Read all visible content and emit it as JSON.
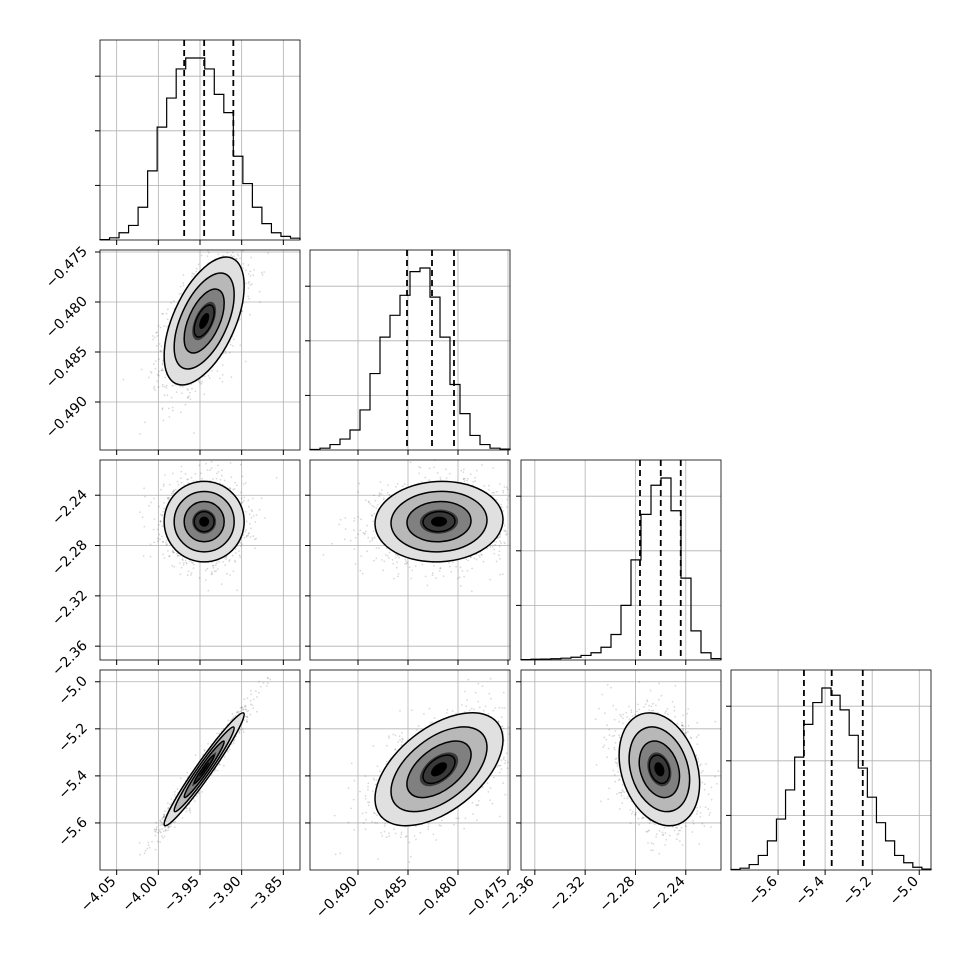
{
  "chart_data": {
    "type": "corner",
    "grid": true,
    "parameters": [
      {
        "key": "p0",
        "mean": -3.945,
        "std": 0.024,
        "range": [
          -4.07,
          -3.83
        ],
        "ticks": [
          -4.05,
          -4.0,
          -3.95,
          -3.9,
          -3.85
        ],
        "tick_labels": [
          "−4.05",
          "−4.00",
          "−3.95",
          "−3.90",
          "−3.85"
        ],
        "quantiles": [
          -3.969,
          -3.945,
          -3.91
        ],
        "hist": [
          0.002,
          0.012,
          0.04,
          0.08,
          0.18,
          0.38,
          0.62,
          0.78,
          0.94,
          1.0,
          1.0,
          0.94,
          0.8,
          0.7,
          0.46,
          0.31,
          0.18,
          0.09,
          0.04,
          0.02,
          0.01
        ]
      },
      {
        "key": "p1",
        "mean": -0.4819,
        "std": 0.0032,
        "range": [
          -0.4948,
          -0.4748
        ],
        "ticks": [
          -0.49,
          -0.485,
          -0.48,
          -0.475
        ],
        "tick_labels": [
          "−0.490",
          "−0.485",
          "−0.480",
          "−0.475"
        ],
        "quantiles": [
          -0.4851,
          -0.4826,
          -0.4804
        ],
        "hist": [
          0.003,
          0.01,
          0.03,
          0.06,
          0.11,
          0.22,
          0.42,
          0.62,
          0.74,
          0.85,
          0.98,
          1.0,
          0.84,
          0.62,
          0.36,
          0.2,
          0.08,
          0.03,
          0.01,
          0.005
        ]
      },
      {
        "key": "p2",
        "mean": -2.261,
        "std": 0.016,
        "range": [
          -2.371,
          -2.212
        ],
        "ticks": [
          -2.36,
          -2.32,
          -2.28,
          -2.24
        ],
        "tick_labels": [
          "−2.36",
          "−2.32",
          "−2.28",
          "−2.24"
        ],
        "quantiles": [
          -2.2764,
          -2.2599,
          -2.244
        ],
        "hist": [
          0.002,
          0.004,
          0.005,
          0.007,
          0.01,
          0.015,
          0.025,
          0.04,
          0.07,
          0.14,
          0.3,
          0.55,
          0.8,
          0.96,
          1.0,
          0.82,
          0.45,
          0.16,
          0.04,
          0.008
        ]
      },
      {
        "key": "p3",
        "mean": -5.372,
        "std": 0.12,
        "range": [
          -5.8,
          -4.95
        ],
        "ticks": [
          -5.6,
          -5.4,
          -5.2,
          -5.0
        ],
        "tick_labels": [
          "−5.6",
          "−5.4",
          "−5.2",
          "−5.0"
        ],
        "quantiles": [
          -5.49,
          -5.372,
          -5.24
        ],
        "hist": [
          0.003,
          0.01,
          0.03,
          0.08,
          0.16,
          0.28,
          0.44,
          0.62,
          0.8,
          0.92,
          1.0,
          0.96,
          0.88,
          0.74,
          0.56,
          0.4,
          0.26,
          0.16,
          0.08,
          0.04,
          0.015,
          0.005
        ]
      }
    ],
    "correlations": [
      [
        1.0,
        0.55,
        0.0,
        0.97
      ],
      [
        0.55,
        1.0,
        0.05,
        0.52
      ],
      [
        0.0,
        0.05,
        1.0,
        -0.25
      ],
      [
        0.97,
        0.52,
        -0.25,
        1.0
      ]
    ]
  }
}
